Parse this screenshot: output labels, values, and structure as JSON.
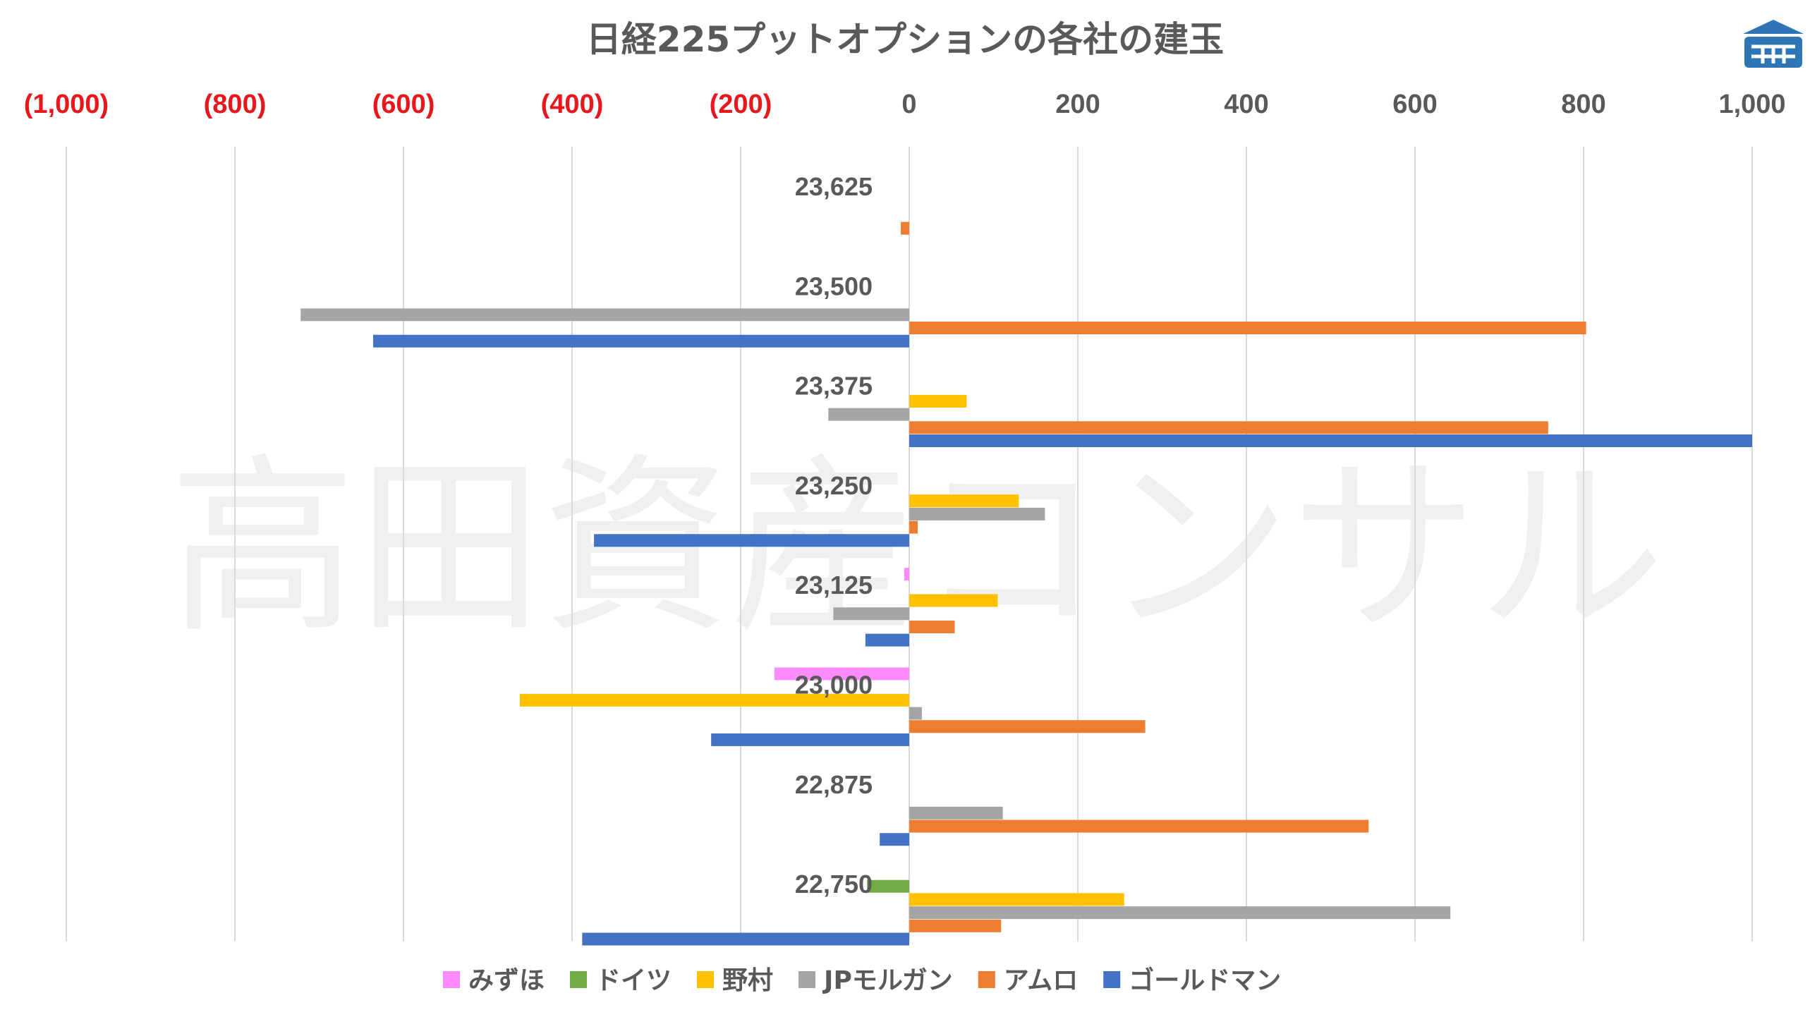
{
  "watermark": "高田資産コンサル",
  "colors": {
    "negative_tick": "#e8171c",
    "positive_tick": "#595959",
    "grid": "#d9d9d9",
    "logo": "#2e75b6"
  },
  "chart_data": {
    "type": "bar",
    "orientation": "horizontal",
    "title": "日経225プットオプションの各社の建玉",
    "xlim": [
      -1000,
      1000
    ],
    "x_ticks": [
      -1000,
      -800,
      -600,
      -400,
      -200,
      0,
      200,
      400,
      600,
      800,
      1000
    ],
    "x_tick_labels": [
      "(1,000)",
      "(800)",
      "(600)",
      "(400)",
      "(200)",
      "0",
      "200",
      "400",
      "600",
      "800",
      "1,000"
    ],
    "x_axis_position": "top",
    "grid": true,
    "legend_position": "bottom",
    "categories": [
      "23,625",
      "23,500",
      "23,375",
      "23,250",
      "23,125",
      "23,000",
      "22,875",
      "22,750"
    ],
    "series": [
      {
        "name": "みずほ",
        "color": "#ff8bff",
        "values": [
          0,
          0,
          0,
          0,
          -6,
          -160,
          0,
          0
        ]
      },
      {
        "name": "ドイツ",
        "color": "#70ad47",
        "values": [
          0,
          0,
          0,
          0,
          0,
          0,
          0,
          -50
        ]
      },
      {
        "name": "野村",
        "color": "#ffc000",
        "values": [
          0,
          0,
          68,
          130,
          105,
          -462,
          0,
          255
        ]
      },
      {
        "name": "JPモルガン",
        "color": "#a5a5a5",
        "values": [
          0,
          -722,
          -96,
          161,
          -90,
          15,
          111,
          642
        ]
      },
      {
        "name": "アムロ",
        "color": "#ed7d31",
        "values": [
          -10,
          803,
          758,
          10,
          54,
          280,
          545,
          109
        ]
      },
      {
        "name": "ゴールドマン",
        "color": "#4472c4",
        "values": [
          0,
          -636,
          1000,
          -374,
          -52,
          -235,
          -35,
          -388
        ]
      }
    ]
  }
}
